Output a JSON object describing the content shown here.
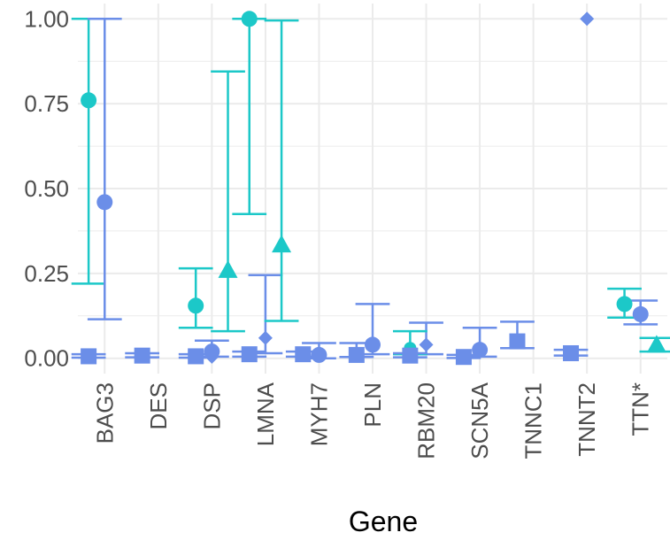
{
  "chart_data": {
    "type": "scatter",
    "xlabel": "Gene",
    "ylabel": "",
    "categories": [
      "BAG3",
      "DES",
      "DSP",
      "LMNA",
      "MYH7",
      "PLN",
      "RBM20",
      "SCN5A",
      "TNNC1",
      "TNNT2",
      "TTN*"
    ],
    "ylim": [
      -0.045,
      1.045
    ],
    "yticks": [
      0.0,
      0.25,
      0.5,
      0.75,
      1.0
    ],
    "ytick_labels": [
      "0.00",
      "0.25",
      "0.50",
      "0.75",
      "1.00"
    ],
    "grid": true,
    "colors": {
      "teal": "#1cc8c8",
      "blue": "#6b8ee8"
    },
    "series": [
      {
        "color": "#1cc8c8",
        "shape": "circle",
        "offset": -0.3,
        "points": [
          {
            "category": "BAG3",
            "y": 0.76,
            "ymin": 0.22,
            "ymax": 1.0
          },
          {
            "category": "DSP",
            "y": 0.155,
            "ymin": 0.09,
            "ymax": 0.265
          },
          {
            "category": "LMNA",
            "y": 1.0,
            "ymin": 0.425,
            "ymax": 1.0
          },
          {
            "category": "TTN*",
            "y": 0.16,
            "ymin": 0.12,
            "ymax": 0.205
          }
        ]
      },
      {
        "color": "#6b8ee8",
        "shape": "circle",
        "offset": 0.0,
        "points": [
          {
            "category": "BAG3",
            "y": 0.46,
            "ymin": 0.115,
            "ymax": 1.0
          },
          {
            "category": "DSP",
            "y": 0.02,
            "ymin": 0.005,
            "ymax": 0.052
          },
          {
            "category": "MYH7",
            "y": 0.01,
            "ymin": 0.0,
            "ymax": 0.045
          },
          {
            "category": "PLN",
            "y": 0.04,
            "ymin": 0.012,
            "ymax": 0.16
          },
          {
            "category": "SCN5A",
            "y": 0.025,
            "ymin": 0.005,
            "ymax": 0.09
          },
          {
            "category": "TTN*",
            "y": 0.13,
            "ymin": 0.1,
            "ymax": 0.17
          }
        ]
      },
      {
        "color": "#6b8ee8",
        "shape": "diamond",
        "offset": 0.0,
        "points": [
          {
            "category": "DSP",
            "y": 0.005
          },
          {
            "category": "LMNA",
            "y": 0.06,
            "ymin": 0.015,
            "ymax": 0.245
          },
          {
            "category": "RBM20",
            "y": 0.04,
            "ymin": 0.012,
            "ymax": 0.105
          },
          {
            "category": "TNNT2",
            "y": 1.0
          }
        ]
      },
      {
        "color": "#1cc8c8",
        "shape": "triangle",
        "offset": 0.3,
        "points": [
          {
            "category": "DSP",
            "y": 0.26,
            "ymin": 0.08,
            "ymax": 0.845
          },
          {
            "category": "LMNA",
            "y": 0.335,
            "ymin": 0.11,
            "ymax": 0.995
          },
          {
            "category": "TTN*",
            "y": 0.04,
            "ymin": 0.02,
            "ymax": 0.06
          }
        ]
      },
      {
        "color": "#1cc8c8",
        "shape": "circle-small",
        "offset": -0.3,
        "points": [
          {
            "category": "RBM20",
            "y": 0.03,
            "ymin": 0.012,
            "ymax": 0.08
          }
        ]
      },
      {
        "color": "#6b8ee8",
        "shape": "square",
        "offset": -0.3,
        "points": [
          {
            "category": "BAG3",
            "y": 0.006,
            "ymin": 0.002,
            "ymax": 0.012
          },
          {
            "category": "DES",
            "y": 0.008,
            "ymin": 0.003,
            "ymax": 0.015
          },
          {
            "category": "DSP",
            "y": 0.006,
            "ymin": 0.002,
            "ymax": 0.012
          },
          {
            "category": "LMNA",
            "y": 0.012,
            "ymin": 0.005,
            "ymax": 0.02
          },
          {
            "category": "MYH7",
            "y": 0.012,
            "ymin": 0.005,
            "ymax": 0.02
          },
          {
            "category": "PLN",
            "y": 0.01,
            "ymin": 0.004,
            "ymax": 0.045
          },
          {
            "category": "RBM20",
            "y": 0.008,
            "ymin": 0.003,
            "ymax": 0.015
          },
          {
            "category": "SCN5A",
            "y": 0.004,
            "ymin": 0.001,
            "ymax": 0.01
          },
          {
            "category": "TNNC1",
            "y": 0.05,
            "ymin": 0.03,
            "ymax": 0.108
          },
          {
            "category": "TNNT2",
            "y": 0.015,
            "ymin": 0.008,
            "ymax": 0.025
          }
        ]
      }
    ]
  }
}
